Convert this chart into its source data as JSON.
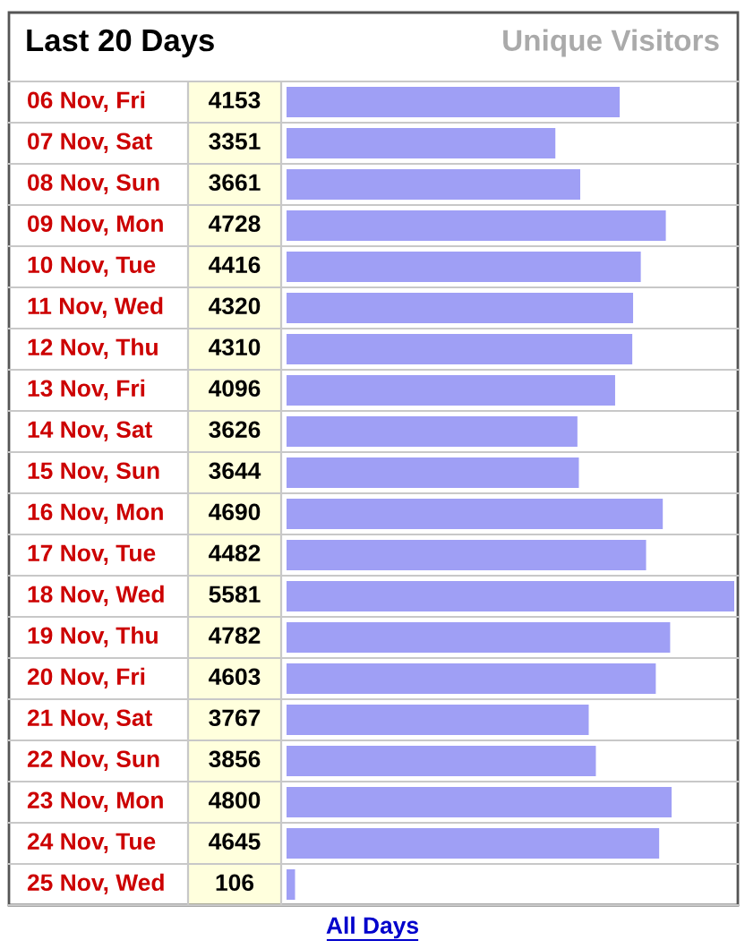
{
  "chart_data": {
    "type": "bar",
    "orientation": "horizontal",
    "title": "Last 20 Days",
    "subtitle": "Unique Visitors",
    "categories": [
      "06 Nov, Fri",
      "07 Nov, Sat",
      "08 Nov, Sun",
      "09 Nov, Mon",
      "10 Nov, Tue",
      "11 Nov, Wed",
      "12 Nov, Thu",
      "13 Nov, Fri",
      "14 Nov, Sat",
      "15 Nov, Sun",
      "16 Nov, Mon",
      "17 Nov, Tue",
      "18 Nov, Wed",
      "19 Nov, Thu",
      "20 Nov, Fri",
      "21 Nov, Sat",
      "22 Nov, Sun",
      "23 Nov, Mon",
      "24 Nov, Tue",
      "25 Nov, Wed"
    ],
    "values": [
      4153,
      3351,
      3661,
      4728,
      4416,
      4320,
      4310,
      4096,
      3626,
      3644,
      4690,
      4482,
      5581,
      4782,
      4603,
      3767,
      3856,
      4800,
      4645,
      106
    ],
    "color": "#9f9ff5",
    "data_labels": true,
    "annotations": [
      "All Days"
    ]
  }
}
